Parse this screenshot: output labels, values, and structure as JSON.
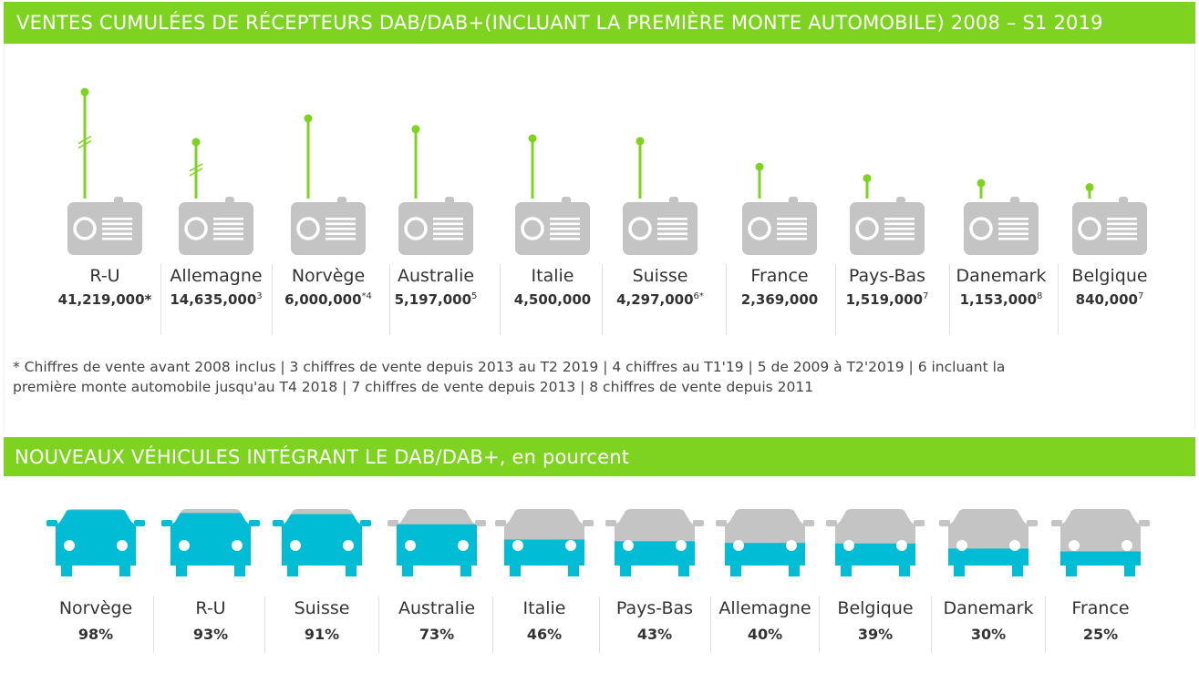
{
  "banner1": "VENTES CUMULÉES DE RÉCEPTEURS DAB/DAB+(INCLUANT LA PREMIÈRE MONTE AUTOMOBILE) 2008 – S1 2019",
  "banner2": "NOUVEAUX VÉHICULES INTÉGRANT LE  DAB/DAB+, en pourcent",
  "footnote_line1": "* Chiffres de vente avant 2008 inclus  | 3 chiffres de vente depuis 2013 au T2 2019 | 4 chiffres au T1'19 | 5 de 2009 à T2'2019 | 6 incluant la",
  "footnote_line2": "première monte automobile jusqu'au T4 2018 | 7 chiffres de vente depuis 2013 | 8 chiffres de vente depuis 2011",
  "colors": {
    "green": "#7ed321",
    "grey": "#c4c4c4",
    "cyan": "#00bcd4"
  },
  "chart_data": [
    {
      "type": "bar",
      "title": "VENTES CUMULÉES DE RÉCEPTEURS DAB/DAB+(INCLUANT LA PREMIÈRE MONTE AUTOMOBILE) 2008 – S1 2019",
      "categories": [
        "R-U",
        "Allemagne",
        "Norvège",
        "Australie",
        "Italie",
        "Suisse",
        "France",
        "Pays-Bas",
        "Danemark",
        "Belgique"
      ],
      "values": [
        41219000,
        14635000,
        6000000,
        5197000,
        4500000,
        4297000,
        2369000,
        1519000,
        1153000,
        840000
      ],
      "labels": [
        "41,219,000",
        "14,635,000",
        "6,000,000",
        "5,197,000",
        "4,500,000",
        "4,297,000",
        "2,369,000",
        "1,519,000",
        "1,153,000",
        "840,000"
      ],
      "marks": [
        "*",
        "3",
        "*4",
        "5",
        "",
        "6*",
        "",
        "7",
        "8",
        "7"
      ],
      "axis_break": [
        true,
        true,
        false,
        false,
        false,
        false,
        false,
        false,
        false,
        false
      ]
    },
    {
      "type": "bar",
      "title": "NOUVEAUX VÉHICULES INTÉGRANT LE  DAB/DAB+, en pourcent",
      "categories": [
        "Norvège",
        "R-U",
        "Suisse",
        "Australie",
        "Italie",
        "Pays-Bas",
        "Allemagne",
        "Belgique",
        "Danemark",
        "France"
      ],
      "values": [
        98,
        93,
        91,
        73,
        46,
        43,
        40,
        39,
        30,
        25
      ],
      "labels": [
        "98%",
        "93%",
        "91%",
        "73%",
        "46%",
        "43%",
        "40%",
        "39%",
        "30%",
        "25%"
      ]
    }
  ]
}
